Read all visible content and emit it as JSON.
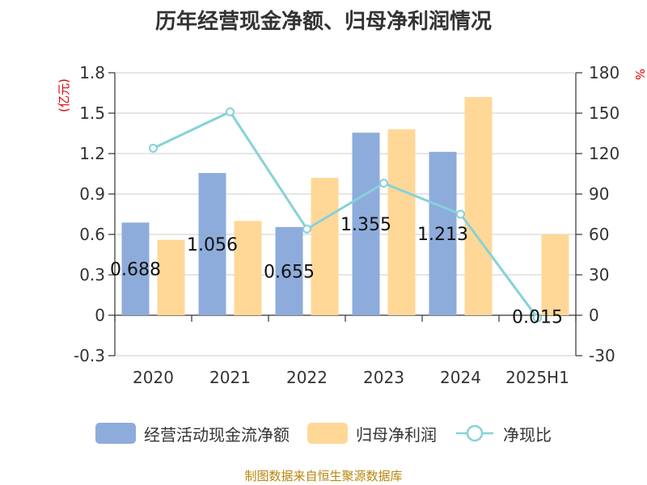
{
  "chart_data": {
    "type": "bar",
    "title": "历年经营现金净额、归母净利润情况",
    "categories": [
      "2020",
      "2021",
      "2022",
      "2023",
      "2024",
      "2025H1"
    ],
    "series": [
      {
        "name": "经营活动现金流净额",
        "kind": "bar",
        "axis": "left",
        "color": "#8eacdb",
        "values": [
          0.688,
          1.056,
          0.655,
          1.355,
          1.213,
          null
        ],
        "labels": [
          "0.688",
          "1.056",
          "0.655",
          "1.355",
          "1.213",
          ""
        ]
      },
      {
        "name": "归母净利润",
        "kind": "bar",
        "axis": "left",
        "color": "#ffd898",
        "values": [
          0.56,
          0.7,
          1.02,
          1.38,
          1.62,
          0.6
        ]
      },
      {
        "name": "净现比",
        "kind": "line",
        "axis": "right",
        "color": "#86d2d8",
        "values": [
          124,
          151,
          64,
          98,
          75,
          -2
        ],
        "labels": [
          "",
          "",
          "",
          "",
          "",
          "0.015"
        ]
      }
    ],
    "ylabel_left": "(亿元)",
    "ylabel_right": "%",
    "ylim_left": [
      -0.3,
      1.8
    ],
    "yticks_left": [
      "-0.3",
      "0",
      "0.3",
      "0.6",
      "0.9",
      "1.2",
      "1.5",
      "1.8"
    ],
    "ylim_right": [
      -30,
      180
    ],
    "yticks_right": [
      "-30",
      "0",
      "30",
      "60",
      "90",
      "120",
      "150",
      "180"
    ],
    "grid": true,
    "legend_position": "bottom"
  },
  "source_note": "制图数据来自恒生聚源数据库"
}
